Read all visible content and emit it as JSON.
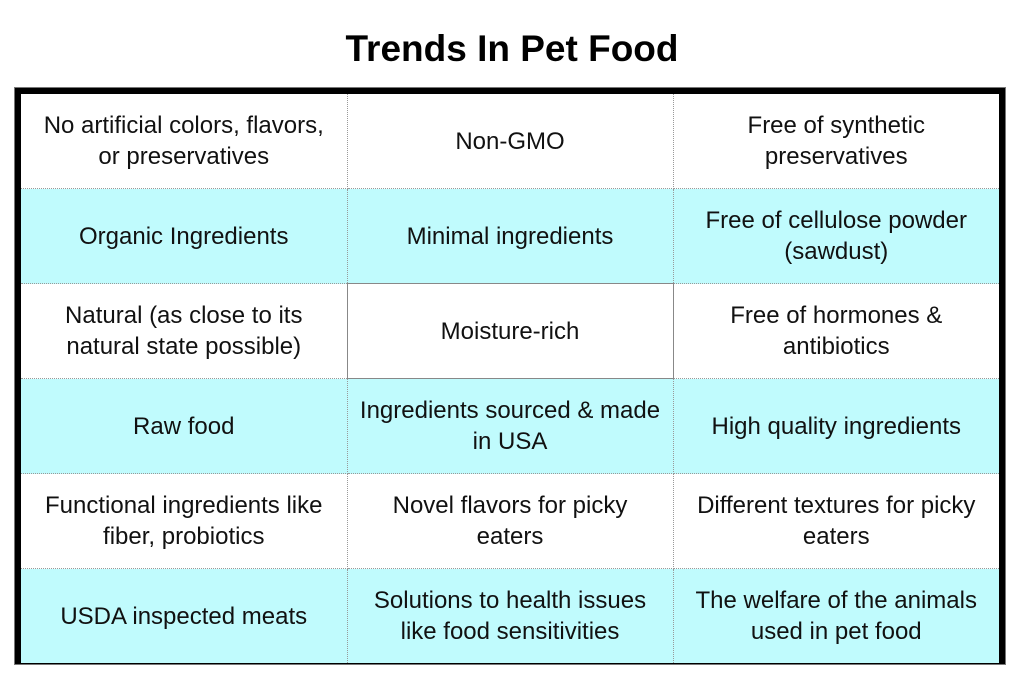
{
  "title": "Trends In Pet Food",
  "colors": {
    "alt_row_fill": "#c0fbfd",
    "frame": "#000000"
  },
  "table": {
    "rows": [
      [
        "No artificial colors, flavors, or preservatives",
        "Non-GMO",
        "Free of synthetic preservatives"
      ],
      [
        "Organic Ingredients",
        "Minimal ingredients",
        "Free of cellulose powder (sawdust)"
      ],
      [
        "Natural (as close to its natural state possible)",
        "Moisture-rich",
        "Free of hormones & antibiotics"
      ],
      [
        "Raw food",
        "Ingredients sourced & made in USA",
        "High quality ingredients"
      ],
      [
        "Functional ingredients like fiber, probiotics",
        "Novel flavors for picky eaters",
        "Different textures for picky eaters"
      ],
      [
        "USDA inspected meats",
        "Solutions to health issues like food sensitivities",
        "The welfare of the animals used in pet food"
      ]
    ]
  }
}
